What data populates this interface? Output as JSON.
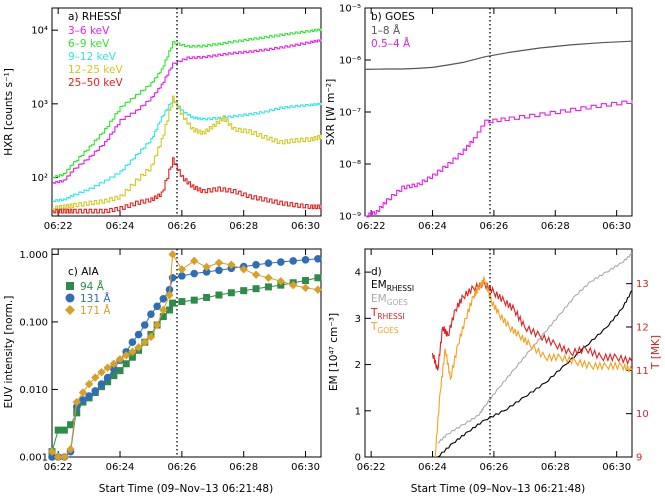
{
  "panel_labels": {
    "a": "a) RHESSI",
    "b": "b) GOES",
    "c": "c) AIA",
    "d": "d)"
  },
  "axis_labels": {
    "a_y": "HXR [counts s⁻¹]",
    "b_y": "SXR [W m⁻²]",
    "c_y": "EUV intensity [norm.]",
    "d_y_left": "EM [10⁴⁷ cm⁻³]",
    "d_y_right": "T [MK]",
    "x_bottom": "Start Time (09–Nov–13 06:21:48)"
  },
  "legend_subscripts": {
    "em_rhessi_main": "EM",
    "em_rhessi_sub": "RHESSI",
    "em_goes_main": "EM",
    "em_goes_sub": "GOES",
    "t_rhessi_main": "T",
    "t_rhessi_sub": "RHESSI",
    "t_goes_main": "T",
    "t_goes_sub": "GOES"
  },
  "colors": {
    "green": "#2ee62e",
    "magenta": "#e61ee6",
    "cyan": "#2ee6e6",
    "yellow": "#d2c81e",
    "red": "#e61e1e",
    "gray": "#555555",
    "aia_green": "#2e8b4a",
    "aia_blue": "#2f6eb6",
    "aia_gold": "#d6a02a",
    "light_gray": "#aaaaaa",
    "orange": "#f5a020",
    "dark_red": "#dd2222"
  },
  "chart_data": [
    {
      "panel": "a",
      "type": "line",
      "title": "a) RHESSI",
      "ylabel": "HXR [counts s⁻¹]",
      "yscale": "log",
      "ylim": [
        30,
        20000
      ],
      "xlim": [
        "06:21:48",
        "06:30:30"
      ],
      "x_ticks": [
        "06:22",
        "06:24",
        "06:26",
        "06:28",
        "06:30"
      ],
      "y_ticks": [
        "10²",
        "10³",
        "10⁴"
      ],
      "series": [
        {
          "name": "3–6 keV",
          "x": [
            "06:21:48",
            "06:22:10",
            "06:22:30",
            "06:23:00",
            "06:23:30",
            "06:24:00",
            "06:24:30",
            "06:25:00",
            "06:25:20",
            "06:25:42",
            "06:26:10",
            "06:26:40",
            "06:27:10",
            "06:27:40",
            "06:28:10",
            "06:28:40",
            "06:29:10",
            "06:29:40",
            "06:30:10",
            "06:30:30"
          ],
          "values": [
            85,
            90,
            130,
            190,
            300,
            600,
            800,
            1200,
            1800,
            3500,
            4200,
            4300,
            4600,
            4900,
            5100,
            5400,
            5800,
            6300,
            6900,
            7300
          ]
        },
        {
          "name": "6–9 keV",
          "x": [
            "06:21:48",
            "06:22:10",
            "06:22:30",
            "06:23:00",
            "06:23:30",
            "06:24:00",
            "06:24:30",
            "06:25:00",
            "06:25:20",
            "06:25:42",
            "06:26:10",
            "06:26:40",
            "06:27:10",
            "06:27:40",
            "06:28:10",
            "06:28:40",
            "06:29:10",
            "06:29:40",
            "06:30:10",
            "06:30:30"
          ],
          "values": [
            100,
            110,
            160,
            260,
            450,
            900,
            1300,
            1900,
            2900,
            6800,
            6000,
            6100,
            6500,
            7000,
            7500,
            8000,
            8600,
            9200,
            9800,
            10200
          ]
        },
        {
          "name": "9–12 keV",
          "x": [
            "06:21:48",
            "06:22:10",
            "06:22:30",
            "06:23:00",
            "06:23:30",
            "06:24:00",
            "06:24:30",
            "06:25:00",
            "06:25:20",
            "06:25:42",
            "06:26:00",
            "06:26:20",
            "06:26:40",
            "06:27:10",
            "06:27:40",
            "06:28:10",
            "06:28:40",
            "06:29:10",
            "06:29:40",
            "06:30:10",
            "06:30:30"
          ],
          "values": [
            48,
            50,
            58,
            70,
            90,
            120,
            200,
            330,
            650,
            1150,
            800,
            650,
            620,
            640,
            680,
            720,
            780,
            880,
            930,
            970,
            1000
          ]
        },
        {
          "name": "12–25 keV",
          "x": [
            "06:21:48",
            "06:22:10",
            "06:22:30",
            "06:23:00",
            "06:23:30",
            "06:24:00",
            "06:24:30",
            "06:25:00",
            "06:25:20",
            "06:25:42",
            "06:26:00",
            "06:26:20",
            "06:26:40",
            "06:27:00",
            "06:27:20",
            "06:27:40",
            "06:28:10",
            "06:28:40",
            "06:29:10",
            "06:29:40",
            "06:30:10",
            "06:30:30"
          ],
          "values": [
            38,
            40,
            42,
            45,
            48,
            55,
            90,
            140,
            320,
            1200,
            700,
            450,
            400,
            500,
            650,
            450,
            420,
            350,
            300,
            320,
            330,
            360
          ]
        },
        {
          "name": "25–50 keV",
          "x": [
            "06:21:48",
            "06:22:10",
            "06:22:30",
            "06:23:00",
            "06:23:30",
            "06:24:00",
            "06:24:30",
            "06:25:00",
            "06:25:20",
            "06:25:42",
            "06:26:00",
            "06:26:20",
            "06:26:40",
            "06:27:10",
            "06:27:40",
            "06:28:10",
            "06:28:40",
            "06:29:10",
            "06:29:40",
            "06:30:10",
            "06:30:30"
          ],
          "values": [
            35,
            35,
            35,
            35,
            35,
            38,
            45,
            50,
            60,
            175,
            100,
            75,
            65,
            70,
            65,
            55,
            50,
            45,
            42,
            40,
            40
          ]
        }
      ]
    },
    {
      "panel": "b",
      "type": "line",
      "title": "b) GOES",
      "ylabel": "SXR [W m⁻²]",
      "yscale": "log",
      "ylim": [
        1e-09,
        1e-05
      ],
      "xlim": [
        "06:21:48",
        "06:30:30"
      ],
      "x_ticks": [
        "06:22",
        "06:24",
        "06:26",
        "06:28",
        "06:30"
      ],
      "y_ticks": [
        "10⁻⁹",
        "10⁻⁸",
        "10⁻⁷",
        "10⁻⁶",
        "10⁻⁵"
      ],
      "series": [
        {
          "name": "1–8 Å",
          "x": [
            "06:21:48",
            "06:22:30",
            "06:23:00",
            "06:23:30",
            "06:24:00",
            "06:24:30",
            "06:25:00",
            "06:25:42",
            "06:26:30",
            "06:27:30",
            "06:28:30",
            "06:29:30",
            "06:30:30"
          ],
          "values": [
            6.6e-07,
            6.7e-07,
            6.7e-07,
            6.9e-07,
            7.2e-07,
            8e-07,
            9e-07,
            1.15e-06,
            1.4e-06,
            1.7e-06,
            1.95e-06,
            2.15e-06,
            2.3e-06
          ]
        },
        {
          "name": "0.5–4 Å",
          "x": [
            "06:21:48",
            "06:22:10",
            "06:22:30",
            "06:23:00",
            "06:23:30",
            "06:24:00",
            "06:24:30",
            "06:25:00",
            "06:25:20",
            "06:25:42",
            "06:26:30",
            "06:27:30",
            "06:28:30",
            "06:29:30",
            "06:30:30"
          ],
          "values": [
            1e-09,
            1.2e-09,
            2e-09,
            3.5e-09,
            4e-09,
            6e-09,
            1e-08,
            1.8e-08,
            3e-08,
            6.5e-08,
            7.5e-08,
            9e-08,
            1.1e-07,
            1.35e-07,
            1.6e-07
          ]
        }
      ]
    },
    {
      "panel": "c",
      "type": "line",
      "title": "c) AIA",
      "ylabel": "EUV intensity [norm.]",
      "yscale": "log",
      "ylim": [
        0.001,
        1.2
      ],
      "xlim": [
        "06:21:48",
        "06:30:30"
      ],
      "x_ticks": [
        "06:22",
        "06:24",
        "06:26",
        "06:28",
        "06:30"
      ],
      "y_ticks": [
        "0.001",
        "0.010",
        "0.100",
        "1.000"
      ],
      "series": [
        {
          "name": "94 Å",
          "x": [
            "06:21:48",
            "06:22:00",
            "06:22:12",
            "06:22:24",
            "06:22:36",
            "06:22:48",
            "06:23:00",
            "06:23:12",
            "06:23:24",
            "06:23:36",
            "06:23:48",
            "06:24:00",
            "06:24:12",
            "06:24:24",
            "06:24:36",
            "06:24:48",
            "06:25:00",
            "06:25:12",
            "06:25:24",
            "06:25:36",
            "06:25:42",
            "06:26:00",
            "06:26:24",
            "06:26:48",
            "06:27:12",
            "06:27:36",
            "06:28:00",
            "06:28:24",
            "06:28:48",
            "06:29:12",
            "06:29:36",
            "06:30:00",
            "06:30:24"
          ],
          "values": [
            0.0012,
            0.0025,
            0.0025,
            0.003,
            0.0045,
            0.0065,
            0.0075,
            0.009,
            0.011,
            0.013,
            0.016,
            0.019,
            0.024,
            0.03,
            0.038,
            0.05,
            0.065,
            0.09,
            0.12,
            0.15,
            0.19,
            0.2,
            0.21,
            0.23,
            0.25,
            0.27,
            0.29,
            0.31,
            0.33,
            0.35,
            0.38,
            0.41,
            0.45
          ]
        },
        {
          "name": "131 Å",
          "x": [
            "06:21:48",
            "06:22:00",
            "06:22:12",
            "06:22:24",
            "06:22:36",
            "06:22:48",
            "06:23:00",
            "06:23:12",
            "06:23:24",
            "06:23:36",
            "06:23:48",
            "06:24:00",
            "06:24:12",
            "06:24:24",
            "06:24:36",
            "06:24:48",
            "06:25:00",
            "06:25:12",
            "06:25:24",
            "06:25:36",
            "06:25:42",
            "06:26:00",
            "06:26:24",
            "06:26:48",
            "06:27:12",
            "06:27:36",
            "06:28:00",
            "06:28:24",
            "06:28:48",
            "06:29:12",
            "06:29:36",
            "06:30:00",
            "06:30:24"
          ],
          "values": [
            0.0008,
            0.0009,
            0.001,
            0.0012,
            0.0055,
            0.007,
            0.008,
            0.0095,
            0.012,
            0.015,
            0.02,
            0.027,
            0.036,
            0.05,
            0.065,
            0.09,
            0.13,
            0.17,
            0.22,
            0.3,
            0.45,
            0.48,
            0.52,
            0.55,
            0.58,
            0.62,
            0.66,
            0.7,
            0.74,
            0.77,
            0.8,
            0.83,
            0.86
          ]
        },
        {
          "name": "171 Å",
          "x": [
            "06:21:48",
            "06:22:00",
            "06:22:12",
            "06:22:24",
            "06:22:36",
            "06:22:48",
            "06:23:00",
            "06:23:12",
            "06:23:24",
            "06:23:36",
            "06:23:48",
            "06:24:00",
            "06:24:12",
            "06:24:24",
            "06:24:36",
            "06:24:48",
            "06:25:00",
            "06:25:12",
            "06:25:24",
            "06:25:36",
            "06:25:42",
            "06:26:00",
            "06:26:24",
            "06:26:48",
            "06:27:12",
            "06:27:36",
            "06:28:00",
            "06:28:24",
            "06:28:48",
            "06:29:12",
            "06:29:36",
            "06:30:00",
            "06:30:24"
          ],
          "values": [
            0.0012,
            0.001,
            0.001,
            0.0013,
            0.0065,
            0.009,
            0.012,
            0.015,
            0.018,
            0.021,
            0.024,
            0.028,
            0.032,
            0.036,
            0.042,
            0.05,
            0.06,
            0.09,
            0.15,
            0.25,
            1.0,
            0.6,
            0.8,
            0.65,
            0.75,
            0.7,
            0.6,
            0.5,
            0.45,
            0.4,
            0.35,
            0.32,
            0.3
          ]
        }
      ]
    },
    {
      "panel": "d",
      "type": "line",
      "title": "d)",
      "ylabel": "EM [10⁴⁷ cm⁻³]",
      "ylabel_right": "T [MK]",
      "ylim": [
        0,
        4.5
      ],
      "ylim_right": [
        9,
        13.8
      ],
      "xlim": [
        "06:21:48",
        "06:30:30"
      ],
      "x_ticks": [
        "06:22",
        "06:24",
        "06:26",
        "06:28",
        "06:30"
      ],
      "y_ticks": [
        "0",
        "1",
        "2",
        "3",
        "4"
      ],
      "y_ticks_right": [
        "9",
        "10",
        "11",
        "12",
        "13"
      ],
      "series": [
        {
          "name": "EM RHESSI",
          "axis": "left",
          "x": [
            "06:24:10",
            "06:24:40",
            "06:25:10",
            "06:25:42",
            "06:26:20",
            "06:27:00",
            "06:27:40",
            "06:28:20",
            "06:29:00",
            "06:29:40",
            "06:30:10",
            "06:30:30"
          ],
          "values": [
            0.0,
            0.3,
            0.55,
            0.8,
            1.0,
            1.3,
            1.6,
            2.0,
            2.4,
            2.8,
            3.2,
            3.6
          ]
        },
        {
          "name": "EM GOES",
          "axis": "left",
          "x": [
            "06:24:10",
            "06:24:30",
            "06:25:00",
            "06:25:30",
            "06:25:42",
            "06:26:10",
            "06:26:40",
            "06:27:10",
            "06:27:40",
            "06:28:10",
            "06:28:40",
            "06:29:10",
            "06:29:40",
            "06:30:10",
            "06:30:30"
          ],
          "values": [
            0.3,
            0.5,
            0.7,
            0.9,
            1.1,
            1.5,
            1.9,
            2.3,
            2.7,
            3.1,
            3.5,
            3.8,
            4.0,
            4.2,
            4.4
          ]
        },
        {
          "name": "T RHESSI",
          "axis": "right",
          "x": [
            "06:24:00",
            "06:24:10",
            "06:24:20",
            "06:24:30",
            "06:24:45",
            "06:25:00",
            "06:25:20",
            "06:25:42",
            "06:26:00",
            "06:26:20",
            "06:26:40",
            "06:27:00",
            "06:27:30",
            "06:28:00",
            "06:28:30",
            "06:29:00",
            "06:29:30",
            "06:30:00",
            "06:30:30"
          ],
          "values": [
            11.4,
            11.0,
            12.0,
            11.8,
            12.4,
            12.7,
            12.9,
            13.0,
            12.8,
            12.6,
            12.4,
            12.0,
            11.8,
            11.6,
            11.4,
            11.5,
            11.3,
            11.3,
            11.2
          ]
        },
        {
          "name": "T GOES",
          "axis": "right",
          "x": [
            "06:24:05",
            "06:24:15",
            "06:24:25",
            "06:24:35",
            "06:24:50",
            "06:25:05",
            "06:25:20",
            "06:25:30",
            "06:25:42",
            "06:25:55",
            "06:26:10",
            "06:26:30",
            "06:26:50",
            "06:27:10",
            "06:27:40",
            "06:28:10",
            "06:28:40",
            "06:29:10",
            "06:29:40",
            "06:30:10",
            "06:30:30"
          ],
          "values": [
            9.0,
            10.5,
            11.5,
            10.8,
            11.6,
            12.2,
            12.7,
            12.9,
            13.1,
            12.6,
            12.3,
            12.0,
            11.8,
            11.6,
            11.3,
            11.3,
            11.2,
            11.1,
            11.1,
            11.1,
            11.0
          ]
        }
      ]
    }
  ]
}
